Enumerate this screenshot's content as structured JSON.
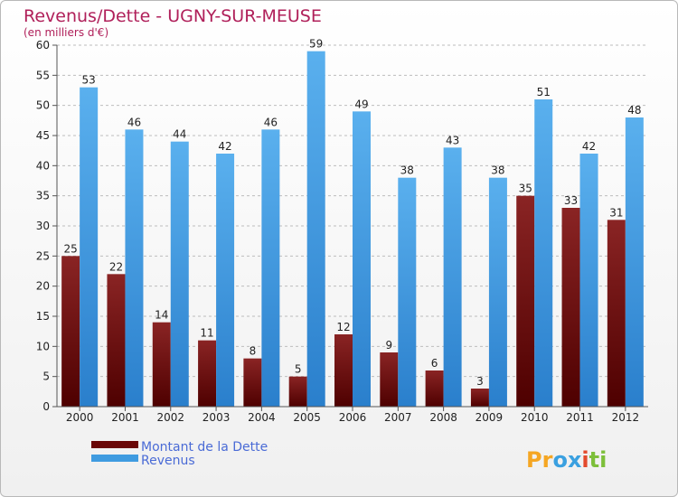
{
  "chart_data": {
    "type": "bar",
    "title": "Revenus/Dette - UGNY-SUR-MEUSE",
    "subtitle": "(en milliers d'€)",
    "categories": [
      "2000",
      "2001",
      "2002",
      "2003",
      "2004",
      "2005",
      "2006",
      "2007",
      "2008",
      "2009",
      "2010",
      "2011",
      "2012"
    ],
    "series": [
      {
        "name": "Montant de la Dette",
        "color": "#7a0a0a",
        "values": [
          25,
          22,
          14,
          11,
          8,
          5,
          12,
          9,
          6,
          3,
          35,
          33,
          31
        ]
      },
      {
        "name": "Revenus",
        "color": "#3f9be0",
        "values": [
          53,
          46,
          44,
          42,
          46,
          59,
          49,
          38,
          43,
          38,
          51,
          42,
          48
        ]
      }
    ],
    "ylim": [
      0,
      60
    ],
    "yticks": [
      0,
      5,
      10,
      15,
      20,
      25,
      30,
      35,
      40,
      45,
      50,
      55,
      60
    ],
    "grid": "horizontal dashed",
    "legend": "bottom-left",
    "data_labels": true
  },
  "logo": {
    "text": "Proxiti",
    "letters": [
      "P",
      "r",
      "o",
      "x",
      "i",
      "t",
      "i"
    ],
    "colors": [
      "#f5a623",
      "#f5a623",
      "#3aa0e0",
      "#3aa0e0",
      "#e34a2e",
      "#7dbf3a",
      "#7dbf3a"
    ]
  }
}
